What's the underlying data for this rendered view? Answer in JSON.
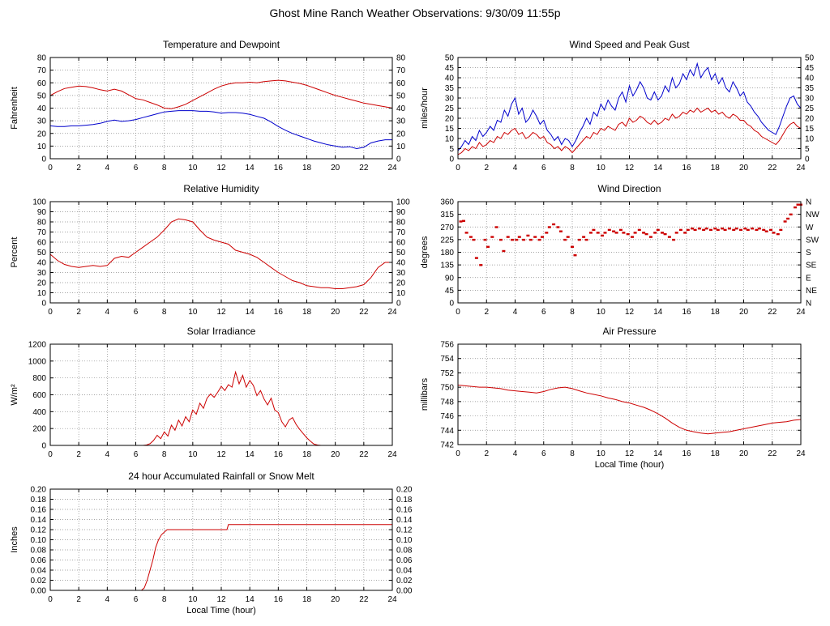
{
  "page": {
    "title": "Ghost Mine Ranch Weather Observations: 9/30/09 11:55p"
  },
  "chart_data": [
    {
      "id": "temperature-dewpoint",
      "type": "line",
      "title": "Temperature and Dewpoint",
      "ylabel": "Fahrenheit",
      "xlabel": "",
      "ylim": [
        0,
        80
      ],
      "ytick": 10,
      "ydecimals": 0,
      "xlim": [
        0,
        24
      ],
      "xtick": 2,
      "right_axis": "mirror",
      "grid": true,
      "legend": "none",
      "series": [
        {
          "name": "Temperature",
          "color": "#cc0000",
          "x0": 0,
          "dx": 0.5,
          "y": [
            50,
            53,
            55.5,
            56.5,
            57.5,
            57,
            56,
            54.5,
            53.5,
            55,
            53.5,
            50.5,
            47.5,
            46.5,
            44.5,
            42.5,
            40,
            39.5,
            41,
            43,
            46,
            49,
            52,
            55,
            57.5,
            59,
            60,
            60,
            60.5,
            60,
            61,
            61.5,
            62,
            61.5,
            60.5,
            59.5,
            58,
            56,
            54,
            52,
            50,
            48.5,
            47,
            45.5,
            44,
            43,
            42,
            41,
            40
          ]
        },
        {
          "name": "Dewpoint",
          "color": "#0000cc",
          "x0": 0,
          "dx": 0.5,
          "y": [
            26,
            25.5,
            25.5,
            26,
            26,
            26.5,
            27,
            28,
            29.5,
            30.5,
            29.5,
            30,
            31,
            32.5,
            34,
            35.5,
            37,
            37.5,
            38,
            38,
            38,
            37.5,
            37.5,
            37,
            36,
            36.5,
            36.5,
            36,
            35,
            33.5,
            32,
            29,
            25.5,
            22.5,
            20,
            18,
            16,
            14,
            12.5,
            11,
            10,
            9,
            9.5,
            8,
            9,
            12.5,
            14,
            15,
            15
          ]
        }
      ]
    },
    {
      "id": "wind-speed-gust",
      "type": "line",
      "title": "Wind Speed and Peak Gust",
      "ylabel": "miles/hour",
      "xlabel": "",
      "ylim": [
        0,
        50
      ],
      "ytick": 5,
      "ydecimals": 0,
      "xlim": [
        0,
        24
      ],
      "xtick": 2,
      "right_axis": "mirror",
      "grid": true,
      "legend": "none",
      "series": [
        {
          "name": "Peak Gust",
          "color": "#0000cc",
          "x0": 0,
          "dx": 0.25,
          "y": [
            4,
            6,
            9,
            7,
            11,
            9,
            14,
            11,
            13,
            16,
            14,
            19,
            18,
            24,
            21,
            27,
            30,
            22,
            25,
            18,
            20,
            24,
            21,
            17,
            19,
            14,
            12,
            9,
            11,
            7,
            10,
            9,
            6,
            9,
            13,
            16,
            20,
            17,
            23,
            21,
            27,
            24,
            29,
            26,
            24,
            30,
            33,
            28,
            36,
            31,
            34,
            38,
            35,
            30,
            29,
            33,
            29,
            31,
            36,
            33,
            40,
            35,
            37,
            42,
            39,
            44,
            41,
            47,
            40,
            43,
            45,
            39,
            42,
            37,
            40,
            35,
            33,
            38,
            35,
            31,
            33,
            28,
            26,
            23,
            21,
            18,
            16,
            14,
            13,
            12,
            16,
            21,
            26,
            30,
            31,
            27,
            25
          ]
        },
        {
          "name": "Wind Speed",
          "color": "#cc0000",
          "x0": 0,
          "dx": 0.25,
          "y": [
            2,
            3,
            5,
            4,
            6,
            5,
            8,
            6,
            7,
            9,
            8,
            11,
            10,
            13,
            12,
            14,
            15,
            12,
            13,
            10,
            11,
            13,
            12,
            10,
            11,
            8,
            7,
            5,
            6,
            4,
            6,
            5,
            3,
            5,
            7,
            9,
            11,
            10,
            13,
            12,
            15,
            14,
            16,
            15,
            14,
            17,
            18,
            16,
            20,
            18,
            19,
            21,
            20,
            18,
            17,
            19,
            17,
            18,
            20,
            19,
            22,
            20,
            21,
            23,
            22,
            24,
            23,
            25,
            23,
            24,
            25,
            23,
            24,
            22,
            23,
            21,
            20,
            22,
            21,
            19,
            19,
            17,
            16,
            14,
            13,
            11,
            10,
            9,
            8,
            7,
            9,
            12,
            15,
            17,
            18,
            16,
            15
          ]
        }
      ]
    },
    {
      "id": "relative-humidity",
      "type": "line",
      "title": "Relative Humidity",
      "ylabel": "Percent",
      "xlabel": "",
      "ylim": [
        0,
        100
      ],
      "ytick": 10,
      "ydecimals": 0,
      "xlim": [
        0,
        24
      ],
      "xtick": 2,
      "right_axis": "mirror",
      "grid": true,
      "legend": "none",
      "series": [
        {
          "name": "Humidity",
          "color": "#cc0000",
          "x0": 0,
          "dx": 0.5,
          "y": [
            48,
            42,
            38,
            36,
            35,
            36,
            37,
            36,
            37,
            44,
            46,
            45,
            50,
            55,
            60,
            65,
            72,
            80,
            83,
            82,
            80,
            72,
            65,
            62,
            60,
            58,
            52,
            50,
            48,
            45,
            40,
            35,
            30,
            26,
            22,
            20,
            17,
            16,
            15,
            15,
            14,
            14,
            15,
            16,
            18,
            25,
            35,
            40,
            40
          ]
        }
      ]
    },
    {
      "id": "wind-direction",
      "type": "scatter",
      "title": "Wind Direction",
      "ylabel": "degrees",
      "xlabel": "",
      "ylim": [
        0,
        360
      ],
      "ytick": 45,
      "ydecimals": 0,
      "xlim": [
        0,
        24
      ],
      "xtick": 2,
      "right_axis": [
        "N",
        "NW",
        "W",
        "SW",
        "S",
        "SE",
        "E",
        "NE",
        "N"
      ],
      "grid": true,
      "legend": "none",
      "series": [
        {
          "name": "Direction",
          "color": "#cc0000",
          "x": [
            0.2,
            0.4,
            0.6,
            0.9,
            1.1,
            1.3,
            1.6,
            1.9,
            2.1,
            2.4,
            2.7,
            3.0,
            3.2,
            3.5,
            3.8,
            4.1,
            4.3,
            4.6,
            4.9,
            5.1,
            5.4,
            5.7,
            5.9,
            6.2,
            6.4,
            6.7,
            7.0,
            7.2,
            7.5,
            7.7,
            8.0,
            8.2,
            8.5,
            8.8,
            9.0,
            9.3,
            9.5,
            9.8,
            10.1,
            10.3,
            10.6,
            10.9,
            11.1,
            11.4,
            11.6,
            11.9,
            12.2,
            12.4,
            12.7,
            13.0,
            13.2,
            13.5,
            13.8,
            14.0,
            14.3,
            14.5,
            14.8,
            15.1,
            15.3,
            15.6,
            15.9,
            16.1,
            16.4,
            16.6,
            16.9,
            17.2,
            17.4,
            17.7,
            18.0,
            18.2,
            18.5,
            18.7,
            19.0,
            19.3,
            19.5,
            19.8,
            20.1,
            20.3,
            20.6,
            20.9,
            21.1,
            21.4,
            21.6,
            21.9,
            22.1,
            22.4,
            22.6,
            22.9,
            23.1,
            23.3,
            23.6,
            23.8,
            24.0
          ],
          "y": [
            290,
            292,
            250,
            235,
            225,
            160,
            135,
            225,
            200,
            235,
            270,
            225,
            185,
            235,
            225,
            225,
            235,
            225,
            240,
            225,
            235,
            225,
            235,
            250,
            270,
            280,
            270,
            255,
            225,
            235,
            200,
            170,
            225,
            235,
            225,
            250,
            260,
            250,
            240,
            250,
            260,
            255,
            250,
            260,
            250,
            245,
            235,
            250,
            260,
            250,
            245,
            235,
            250,
            260,
            250,
            245,
            235,
            225,
            250,
            260,
            250,
            260,
            265,
            260,
            265,
            260,
            265,
            260,
            265,
            260,
            265,
            260,
            265,
            260,
            265,
            260,
            265,
            260,
            265,
            260,
            265,
            260,
            255,
            260,
            250,
            245,
            260,
            290,
            300,
            315,
            340,
            350,
            350
          ]
        }
      ]
    },
    {
      "id": "solar-irradiance",
      "type": "line",
      "title": "Solar Irradiance",
      "ylabel": "W/m²",
      "xlabel": "",
      "ylim": [
        0,
        1200
      ],
      "ytick": 200,
      "ydecimals": 0,
      "xlim": [
        0,
        24
      ],
      "xtick": 2,
      "right_axis": "none",
      "grid": true,
      "legend": "none",
      "series": [
        {
          "name": "Irradiance",
          "color": "#cc0000",
          "x0": 0,
          "dx": 0.25,
          "y": [
            0,
            0,
            0,
            0,
            0,
            0,
            0,
            0,
            0,
            0,
            0,
            0,
            0,
            0,
            0,
            0,
            0,
            0,
            0,
            0,
            0,
            0,
            0,
            0,
            0,
            0,
            0,
            5,
            20,
            60,
            120,
            80,
            160,
            110,
            240,
            180,
            300,
            230,
            340,
            280,
            420,
            370,
            500,
            440,
            560,
            610,
            570,
            630,
            700,
            650,
            720,
            690,
            870,
            730,
            830,
            690,
            770,
            710,
            590,
            650,
            550,
            480,
            560,
            420,
            390,
            280,
            220,
            300,
            330,
            250,
            190,
            140,
            90,
            50,
            15,
            5,
            0,
            0,
            0,
            0,
            0,
            0,
            0,
            0,
            0,
            0,
            0,
            0,
            0,
            0,
            0,
            0,
            0,
            0,
            0,
            0,
            0
          ]
        }
      ]
    },
    {
      "id": "air-pressure",
      "type": "line",
      "title": "Air Pressure",
      "ylabel": "millibars",
      "xlabel": "Local Time (hour)",
      "ylim": [
        742,
        756
      ],
      "ytick": 2,
      "ydecimals": 0,
      "xlim": [
        0,
        24
      ],
      "xtick": 2,
      "right_axis": "none",
      "grid": true,
      "legend": "none",
      "series": [
        {
          "name": "Pressure",
          "color": "#cc0000",
          "x0": 0,
          "dx": 0.5,
          "y": [
            750.3,
            750.2,
            750.1,
            750.0,
            750.0,
            749.9,
            749.8,
            749.6,
            749.5,
            749.4,
            749.3,
            749.2,
            749.4,
            749.7,
            749.9,
            750.0,
            749.8,
            749.5,
            749.2,
            749.0,
            748.8,
            748.5,
            748.3,
            748.0,
            747.8,
            747.5,
            747.2,
            746.8,
            746.3,
            745.7,
            745.0,
            744.4,
            744.0,
            743.8,
            743.6,
            743.5,
            743.6,
            743.7,
            743.8,
            744.0,
            744.2,
            744.4,
            744.6,
            744.8,
            745.0,
            745.1,
            745.2,
            745.4,
            745.5
          ]
        }
      ]
    },
    {
      "id": "rainfall",
      "type": "line",
      "title": "24 hour Accumulated Rainfall or Snow Melt",
      "ylabel": "Inches",
      "xlabel": "Local Time (hour)",
      "ylim": [
        0,
        0.2
      ],
      "ytick": 0.02,
      "ydecimals": 2,
      "xlim": [
        0,
        24
      ],
      "xtick": 2,
      "right_axis": "mirror",
      "grid": true,
      "legend": "none",
      "series": [
        {
          "name": "Rainfall",
          "color": "#cc0000",
          "x": [
            0,
            6.4,
            6.6,
            6.8,
            7.0,
            7.2,
            7.4,
            7.6,
            7.8,
            8.0,
            8.2,
            12.4,
            12.5,
            24
          ],
          "y": [
            0,
            0,
            0.005,
            0.02,
            0.04,
            0.06,
            0.085,
            0.1,
            0.11,
            0.115,
            0.12,
            0.12,
            0.13,
            0.13
          ]
        }
      ]
    }
  ]
}
